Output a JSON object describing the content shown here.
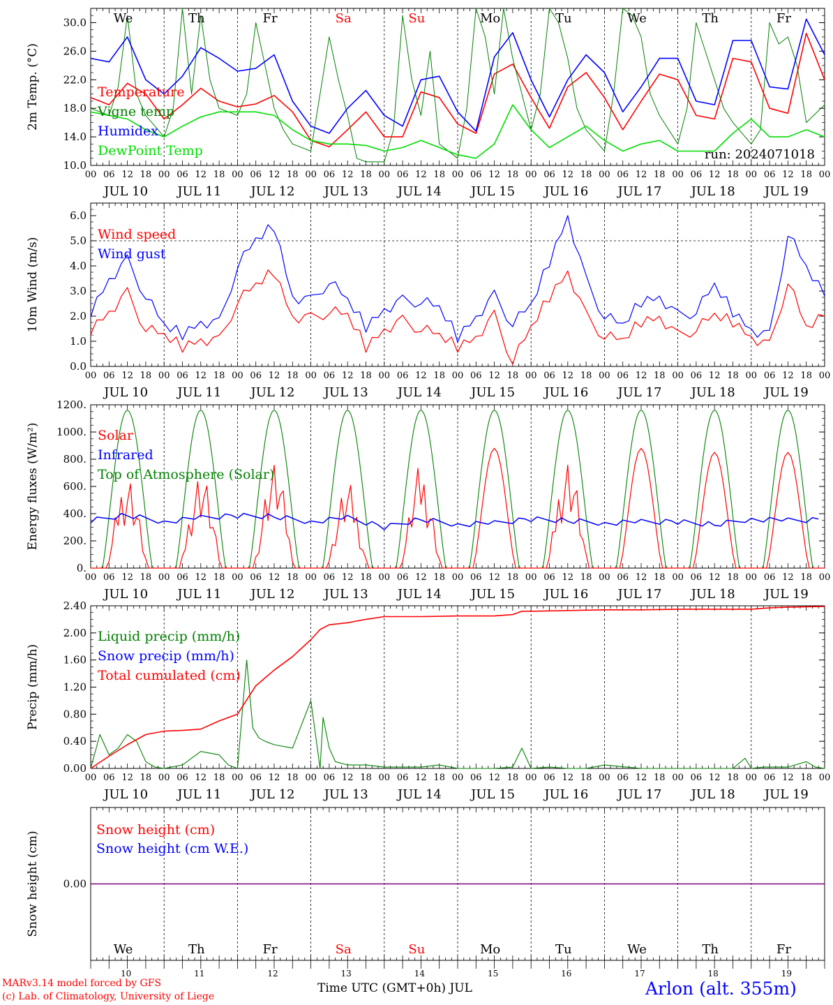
{
  "run_label": "run: 2024071018",
  "days_of_week": [
    {
      "label": "We",
      "color": "#000000"
    },
    {
      "label": "Th",
      "color": "#000000"
    },
    {
      "label": "Fr",
      "color": "#000000"
    },
    {
      "label": "Sa",
      "color": "#ff0000"
    },
    {
      "label": "Su",
      "color": "#ff0000"
    },
    {
      "label": "Mo",
      "color": "#000000"
    },
    {
      "label": "Tu",
      "color": "#000000"
    },
    {
      "label": "We",
      "color": "#000000"
    },
    {
      "label": "Th",
      "color": "#000000"
    },
    {
      "label": "Fr",
      "color": "#000000"
    }
  ],
  "date_labels": [
    "JUL 10",
    "JUL 11",
    "JUL 12",
    "JUL 13",
    "JUL 14",
    "JUL 15",
    "JUL 16",
    "JUL 17",
    "JUL 18",
    "JUL 19"
  ],
  "hour_ticks": [
    "00",
    "06",
    "12",
    "18"
  ],
  "day_numbers": [
    "10",
    "11",
    "12",
    "13",
    "14",
    "15",
    "16",
    "17",
    "18",
    "19"
  ],
  "x_axis_title": "Time UTC (GMT+0h) JUL",
  "footer": {
    "model": "MARv3.14 model forced by GFS",
    "credit": "(c) Lab. of Climatology, University of Liege",
    "location": "Arlon (alt. 355m)"
  },
  "colors": {
    "red": "#ff0000",
    "green": "#008000",
    "blue": "#0000ff",
    "light_green": "#00dd00",
    "purple": "#7f007f",
    "black": "#000000"
  },
  "chart_data": [
    {
      "type": "line",
      "ylabel": "2m Temp. (°C)",
      "ylim": [
        10,
        32
      ],
      "yticks": [
        "10.0",
        "14.0",
        "18.0",
        "22.0",
        "26.0",
        "30.0"
      ],
      "yticks_values": [
        10,
        14,
        18,
        22,
        26,
        30
      ],
      "x_unit": "hours since JUL 10 00 UTC",
      "series": [
        {
          "name": "Temperature",
          "color": "#ff0000",
          "x": [
            0,
            6,
            12,
            18,
            24,
            30,
            36,
            42,
            48,
            54,
            60,
            66,
            72,
            78,
            84,
            90,
            96,
            102,
            108,
            114,
            120,
            126,
            132,
            138,
            144,
            150,
            156,
            162,
            168,
            174,
            180,
            186,
            192,
            198,
            204,
            210,
            216,
            222,
            228,
            234,
            240
          ],
          "values": [
            19.5,
            18.5,
            21.5,
            20,
            16.5,
            18.5,
            20.8,
            19,
            18.2,
            18.6,
            19.8,
            17.5,
            13.5,
            12.6,
            15,
            17.5,
            14,
            14,
            20.3,
            19.5,
            15.8,
            14.5,
            22.8,
            24.2,
            19.5,
            15.2,
            21,
            23,
            19.5,
            15,
            19,
            22.8,
            22,
            17,
            16.5,
            25,
            24.5,
            18,
            17.3,
            28.5,
            22
          ]
        },
        {
          "name": "Vigne temp",
          "color": "#008000",
          "x": [
            0,
            6,
            9,
            12,
            15,
            18,
            24,
            27,
            30,
            33,
            36,
            39,
            42,
            48,
            51,
            54,
            57,
            60,
            63,
            66,
            72,
            75,
            78,
            81,
            84,
            87,
            90,
            96,
            99,
            102,
            105,
            108,
            111,
            114,
            120,
            123,
            126,
            129,
            132,
            135,
            138,
            144,
            147,
            150,
            153,
            156,
            159,
            162,
            168,
            171,
            174,
            177,
            180,
            183,
            186,
            192,
            195,
            198,
            201,
            204,
            207,
            210,
            216,
            219,
            222,
            225,
            228,
            231,
            234,
            240
          ],
          "values": [
            18,
            17,
            21,
            31,
            20,
            17,
            14,
            18,
            32,
            20,
            31,
            22,
            18,
            17,
            20,
            30,
            24,
            18,
            15,
            13,
            12,
            20,
            28,
            22,
            17,
            11,
            10.5,
            10.5,
            15,
            31,
            22,
            17,
            26,
            13,
            11,
            18,
            32,
            28,
            20,
            32,
            25,
            15,
            20,
            32,
            30,
            25,
            18,
            15,
            12,
            20,
            32,
            31,
            28,
            20,
            17,
            13,
            18,
            30,
            26,
            22,
            18,
            16,
            13,
            15,
            30,
            27,
            28,
            24,
            16,
            18.5
          ]
        },
        {
          "name": "Humidex",
          "color": "#0000ff",
          "x": [
            0,
            6,
            12,
            18,
            24,
            30,
            36,
            42,
            48,
            54,
            60,
            66,
            72,
            78,
            84,
            90,
            96,
            102,
            108,
            114,
            120,
            126,
            132,
            138,
            144,
            150,
            156,
            162,
            168,
            174,
            180,
            186,
            192,
            198,
            204,
            210,
            216,
            222,
            228,
            234,
            240
          ],
          "values": [
            25,
            24.5,
            28,
            22,
            20,
            22.5,
            26.5,
            25,
            23.2,
            23.6,
            25.5,
            19,
            15.5,
            14.5,
            18,
            20.5,
            17,
            15.5,
            22,
            22.5,
            17.5,
            14.8,
            25.2,
            28.6,
            22,
            16.8,
            22,
            25.5,
            23,
            17.5,
            21,
            25,
            25,
            19,
            18.5,
            27.5,
            27.5,
            21,
            20.7,
            30.5,
            25.5
          ]
        },
        {
          "name": "DewPoint Temp",
          "color": "#00dd00",
          "x": [
            0,
            6,
            12,
            18,
            24,
            30,
            36,
            42,
            48,
            54,
            60,
            66,
            72,
            78,
            84,
            90,
            96,
            102,
            108,
            114,
            120,
            126,
            132,
            138,
            144,
            150,
            156,
            162,
            168,
            174,
            180,
            186,
            192,
            198,
            204,
            210,
            216,
            222,
            228,
            234,
            240
          ],
          "values": [
            17.5,
            17,
            16.5,
            15,
            14,
            15.5,
            16.8,
            17.5,
            17.5,
            17.5,
            17,
            15,
            13.5,
            13,
            13,
            12.8,
            12,
            12.5,
            13.5,
            12.5,
            11.5,
            11,
            13,
            18.5,
            15,
            12.5,
            14,
            15.5,
            13.5,
            12,
            13,
            13.5,
            12,
            12,
            12,
            14.5,
            16.5,
            14,
            14,
            15,
            14
          ]
        }
      ]
    },
    {
      "type": "line",
      "ylabel": "10m Wind (m/s)",
      "ylim": [
        0,
        6.5
      ],
      "yticks": [
        "0.0",
        "1.0",
        "2.0",
        "3.0",
        "4.0",
        "5.0",
        "6.0"
      ],
      "yticks_values": [
        0,
        1,
        2,
        3,
        4,
        5,
        6
      ],
      "x_unit": "hours since JUL 10 00 UTC",
      "series": [
        {
          "name": "Wind speed",
          "color": "#ff0000",
          "x": [
            0,
            6,
            12,
            18,
            24,
            30,
            36,
            42,
            48,
            54,
            60,
            66,
            72,
            78,
            84,
            90,
            96,
            102,
            108,
            114,
            120,
            126,
            132,
            138,
            144,
            150,
            156,
            162,
            168,
            174,
            180,
            186,
            192,
            198,
            204,
            210,
            216,
            222,
            228,
            234,
            240
          ],
          "values": [
            1.5,
            2.2,
            2.9,
            1.5,
            1.2,
            0.8,
            1.1,
            1.0,
            2.6,
            3.2,
            3.8,
            2.0,
            1.9,
            2.2,
            2.0,
            0.8,
            1.5,
            1.8,
            1.5,
            1.2,
            0.8,
            1.2,
            2.0,
            0.2,
            1.5,
            2.8,
            3.8,
            2.0,
            1.2,
            1.0,
            1.8,
            2.0,
            1.2,
            1.5,
            2.0,
            1.8,
            1.2,
            0.8,
            3.4,
            1.5,
            2.0
          ]
        },
        {
          "name": "Wind gust",
          "color": "#0000ff",
          "x": [
            0,
            6,
            12,
            18,
            24,
            30,
            36,
            42,
            48,
            54,
            60,
            66,
            72,
            78,
            84,
            90,
            96,
            102,
            108,
            114,
            120,
            126,
            132,
            138,
            144,
            150,
            156,
            162,
            168,
            174,
            180,
            186,
            192,
            198,
            204,
            210,
            216,
            222,
            228,
            234,
            240
          ],
          "values": [
            2.2,
            3.5,
            4.2,
            2.8,
            1.6,
            1.3,
            1.8,
            1.7,
            4.0,
            5.0,
            5.6,
            2.8,
            2.6,
            3.4,
            2.6,
            1.6,
            2.3,
            2.6,
            2.6,
            2.3,
            1.2,
            2.0,
            2.8,
            1.7,
            2.4,
            4.2,
            6.0,
            3.4,
            2.0,
            1.6,
            2.6,
            2.8,
            2.0,
            2.2,
            3.2,
            2.2,
            1.5,
            1.2,
            5.3,
            3.9,
            2.8
          ]
        }
      ]
    },
    {
      "type": "line",
      "ylabel": "Energy fluxes (W/m²)",
      "ylim": [
        0,
        1200
      ],
      "yticks": [
        "0.",
        "200.",
        "400.",
        "600.",
        "800.",
        "1000.",
        "1200."
      ],
      "yticks_values": [
        0,
        200,
        400,
        600,
        800,
        1000,
        1200
      ],
      "x_unit": "hours since JUL 10 00 UTC",
      "series": [
        {
          "name": "Solar",
          "color": "#ff0000",
          "day_peaks": [
            720,
            740,
            800,
            630,
            760,
            880,
            850,
            880,
            850,
            850
          ]
        },
        {
          "name": "Infrared",
          "color": "#0000ff",
          "x": [
            0,
            12,
            24,
            36,
            48,
            60,
            72,
            84,
            96,
            108,
            120,
            132,
            144,
            156,
            168,
            180,
            192,
            204,
            216,
            228,
            240
          ],
          "values": [
            350,
            390,
            340,
            370,
            385,
            380,
            340,
            370,
            300,
            360,
            320,
            330,
            360,
            350,
            330,
            340,
            340,
            320,
            360,
            350,
            355
          ]
        },
        {
          "name": "Top of Atmosphere (Solar)",
          "color": "#008000",
          "daily_peak": 1160
        }
      ]
    },
    {
      "type": "line",
      "ylabel": "Precip (mm/h)",
      "ylim": [
        0,
        2.4
      ],
      "yticks": [
        "0.00",
        "0.40",
        "0.80",
        "1.20",
        "1.60",
        "2.00",
        "2.40"
      ],
      "yticks_values": [
        0,
        0.4,
        0.8,
        1.2,
        1.6,
        2.0,
        2.4
      ],
      "x_unit": "hours since JUL 10 00 UTC",
      "series": [
        {
          "name": "Liquid precip (mm/h)",
          "color": "#008000",
          "x": [
            0,
            3,
            6,
            9,
            12,
            15,
            18,
            21,
            24,
            30,
            36,
            42,
            45,
            48,
            51,
            53,
            55,
            57,
            60,
            66,
            72,
            75,
            76,
            78,
            80,
            84,
            90,
            96,
            102,
            108,
            114,
            120,
            132,
            138,
            141,
            144,
            150,
            156,
            162,
            168,
            180,
            200,
            210,
            214,
            216,
            220,
            228,
            234,
            237,
            240
          ],
          "values": [
            0,
            0.5,
            0.2,
            0.3,
            0.5,
            0.4,
            0.1,
            0.02,
            0,
            0.05,
            0.25,
            0.2,
            0.05,
            0,
            1.6,
            0.6,
            0.45,
            0.4,
            0.35,
            0.3,
            1.0,
            0,
            0.75,
            0.3,
            0.1,
            0.05,
            0.05,
            0.02,
            0.02,
            0.02,
            0.05,
            0,
            0,
            0.02,
            0.3,
            0,
            0.02,
            0,
            0,
            0.05,
            0,
            0,
            0,
            0.15,
            0,
            0.02,
            0.02,
            0.1,
            0.02,
            0
          ]
        },
        {
          "name": "Snow precip (mm/h)",
          "color": "#0000ff",
          "values": []
        },
        {
          "name": "Total cumulated (cm)",
          "color": "#ff0000",
          "x": [
            0,
            6,
            12,
            18,
            24,
            30,
            36,
            42,
            48,
            54,
            60,
            66,
            72,
            75,
            78,
            84,
            90,
            96,
            108,
            120,
            132,
            138,
            141,
            144,
            156,
            168,
            180,
            192,
            204,
            216,
            222,
            228,
            240
          ],
          "values": [
            0,
            0.18,
            0.35,
            0.5,
            0.55,
            0.56,
            0.58,
            0.7,
            0.8,
            1.22,
            1.45,
            1.65,
            1.9,
            2.05,
            2.12,
            2.15,
            2.2,
            2.24,
            2.24,
            2.25,
            2.25,
            2.27,
            2.32,
            2.32,
            2.33,
            2.34,
            2.34,
            2.35,
            2.35,
            2.35,
            2.37,
            2.38,
            2.39
          ]
        }
      ]
    },
    {
      "type": "line",
      "ylabel": "Snow height (cm)",
      "yticks": [
        "0.00"
      ],
      "yticks_values": [
        0
      ],
      "ylim": [
        -1,
        1
      ],
      "series": [
        {
          "name": "Snow height (cm)",
          "color": "#ff0000",
          "values": [
            0
          ]
        },
        {
          "name": "Snow height (cm W.E.)",
          "color": "#0000ff",
          "values": [
            0
          ]
        }
      ]
    }
  ]
}
